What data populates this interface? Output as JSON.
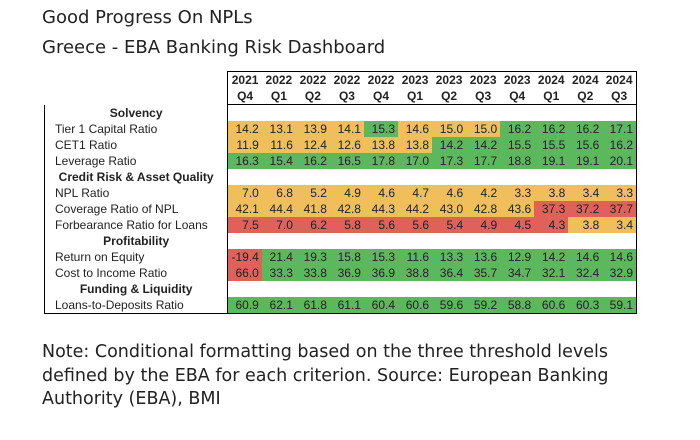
{
  "title": "Good Progress On NPLs",
  "subtitle": "Greece - EBA Banking Risk Dashboard",
  "colors": {
    "green": "#5cb85c",
    "yellow": "#f0be5a",
    "red": "#e0605a"
  },
  "chart_data": {
    "type": "table",
    "column_years": [
      "2021",
      "2022",
      "2022",
      "2022",
      "2022",
      "2023",
      "2023",
      "2023",
      "2023",
      "2024",
      "2024",
      "2024"
    ],
    "column_quarters": [
      "Q4",
      "Q1",
      "Q2",
      "Q3",
      "Q4",
      "Q1",
      "Q2",
      "Q3",
      "Q4",
      "Q1",
      "Q2",
      "Q3"
    ],
    "rows": [
      {
        "section": "Solvency"
      },
      {
        "label": "Tier 1 Capital Ratio",
        "values": [
          "14.2",
          "13.1",
          "13.9",
          "14.1",
          "15.3",
          "14.6",
          "15.0",
          "15.0",
          "16.2",
          "16.2",
          "16.2",
          "17.1"
        ],
        "status": [
          "y",
          "y",
          "y",
          "y",
          "g",
          "y",
          "y",
          "y",
          "g",
          "g",
          "g",
          "g"
        ]
      },
      {
        "label": "CET1 Ratio",
        "values": [
          "11.9",
          "11.6",
          "12.4",
          "12.6",
          "13.8",
          "13.8",
          "14.2",
          "14.2",
          "15.5",
          "15.5",
          "15.6",
          "16.2"
        ],
        "status": [
          "y",
          "y",
          "y",
          "y",
          "y",
          "y",
          "g",
          "g",
          "g",
          "g",
          "g",
          "g"
        ]
      },
      {
        "label": "Leverage Ratio",
        "values": [
          "16.3",
          "15.4",
          "16.2",
          "16.5",
          "17.8",
          "17.0",
          "17.3",
          "17.7",
          "18.8",
          "19.1",
          "19.1",
          "20.1"
        ],
        "status": [
          "g",
          "g",
          "g",
          "g",
          "g",
          "g",
          "g",
          "g",
          "g",
          "g",
          "g",
          "g"
        ]
      },
      {
        "section": "Credit Risk & Asset Quality"
      },
      {
        "label": "NPL Ratio",
        "values": [
          "7.0",
          "6.8",
          "5.2",
          "4.9",
          "4.6",
          "4.7",
          "4.6",
          "4.2",
          "3.3",
          "3.8",
          "3.4",
          "3.3"
        ],
        "status": [
          "y",
          "y",
          "y",
          "y",
          "y",
          "y",
          "y",
          "y",
          "y",
          "y",
          "y",
          "y"
        ]
      },
      {
        "label": "Coverage Ratio of NPL",
        "values": [
          "42.1",
          "44.4",
          "41.8",
          "42.8",
          "44.3",
          "44.2",
          "43.0",
          "42.8",
          "43.6",
          "37.3",
          "37.2",
          "37.7"
        ],
        "status": [
          "y",
          "y",
          "y",
          "y",
          "y",
          "y",
          "y",
          "y",
          "y",
          "r",
          "r",
          "r"
        ]
      },
      {
        "label": "Forbearance Ratio for Loans",
        "values": [
          "7.5",
          "7.0",
          "6.2",
          "5.8",
          "5.6",
          "5.6",
          "5.4",
          "4.9",
          "4.5",
          "4.3",
          "3.8",
          "3.4"
        ],
        "status": [
          "r",
          "r",
          "r",
          "r",
          "r",
          "r",
          "r",
          "r",
          "r",
          "r",
          "y",
          "y"
        ]
      },
      {
        "section": "Profitability"
      },
      {
        "label": "Return on Equity",
        "values": [
          "-19.4",
          "21.4",
          "19.3",
          "15.8",
          "15.3",
          "11.6",
          "13.3",
          "13.6",
          "12.9",
          "14.2",
          "14.6",
          "14.6"
        ],
        "status": [
          "r",
          "g",
          "g",
          "g",
          "g",
          "g",
          "g",
          "g",
          "g",
          "g",
          "g",
          "g"
        ]
      },
      {
        "label": "Cost to Income Ratio",
        "values": [
          "66.0",
          "33.3",
          "33.8",
          "36.9",
          "36.9",
          "38.8",
          "36.4",
          "35.7",
          "34.7",
          "32.1",
          "32.4",
          "32.9"
        ],
        "status": [
          "r",
          "g",
          "g",
          "g",
          "g",
          "g",
          "g",
          "g",
          "g",
          "g",
          "g",
          "g"
        ]
      },
      {
        "section": "Funding & Liquidity"
      },
      {
        "label": "Loans-to-Deposits Ratio",
        "values": [
          "60.9",
          "62.1",
          "61.8",
          "61.1",
          "60.4",
          "60.6",
          "59.6",
          "59.2",
          "58.8",
          "60.6",
          "60.3",
          "59.1"
        ],
        "status": [
          "g",
          "g",
          "g",
          "g",
          "g",
          "g",
          "g",
          "g",
          "g",
          "g",
          "g",
          "g"
        ]
      }
    ]
  },
  "note": "Note: Conditional formatting based on the three threshold levels defined by the EBA for each criterion. Source: European Banking Authority (EBA), BMI"
}
